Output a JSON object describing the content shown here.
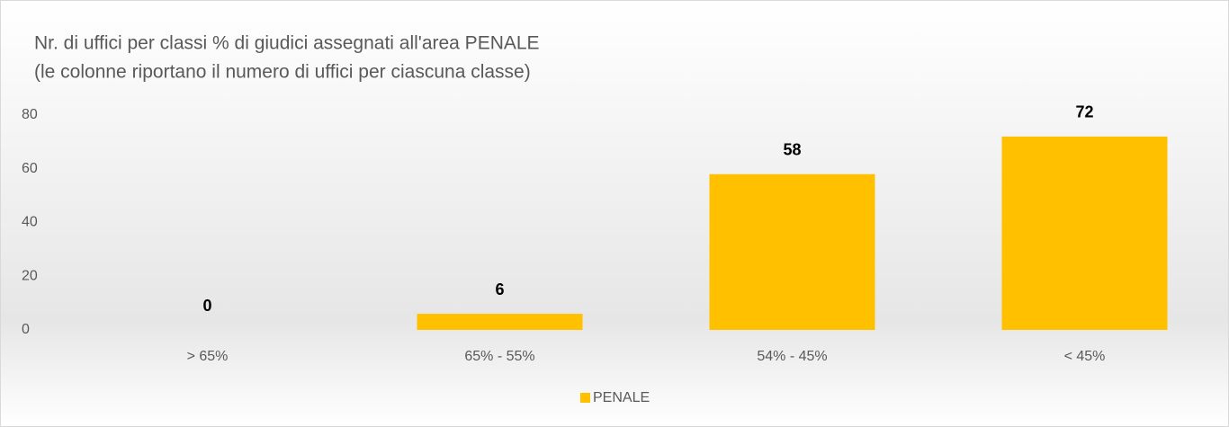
{
  "chart_data": {
    "type": "bar",
    "title": "Nr. di uffici per classi % di giudici assegnati all'area PENALE",
    "subtitle": "(le colonne riportano il numero di uffici per ciascuna classe)",
    "categories": [
      "> 65%",
      "65% - 55%",
      "54% - 45%",
      "< 45%"
    ],
    "series": [
      {
        "name": "PENALE",
        "color": "#ffc000",
        "values": [
          0,
          6,
          58,
          72
        ]
      }
    ],
    "ylim": [
      0,
      80
    ],
    "yticks": [
      0,
      20,
      40,
      60,
      80
    ],
    "grid": false,
    "legend": "bottom"
  }
}
